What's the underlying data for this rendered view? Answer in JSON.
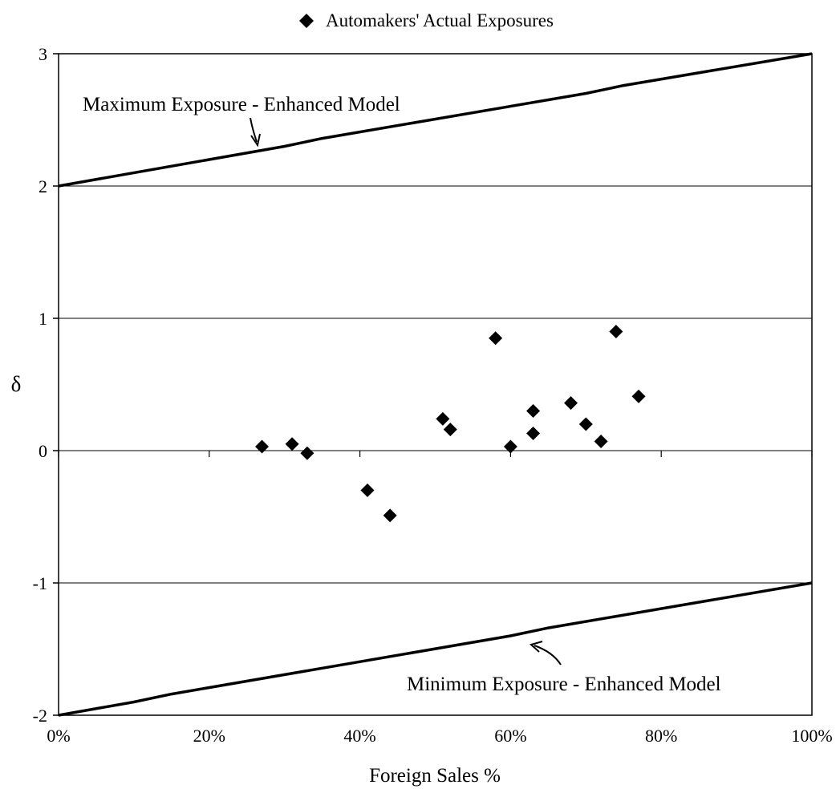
{
  "chart_data": {
    "type": "scatter",
    "title": "",
    "xlabel": "Foreign Sales %",
    "ylabel": "δ",
    "xlim": [
      0,
      100
    ],
    "ylim": [
      -2,
      3
    ],
    "x_ticks": [
      0,
      20,
      40,
      60,
      80,
      100
    ],
    "x_tick_labels": [
      "0%",
      "20%",
      "40%",
      "60%",
      "80%",
      "100%"
    ],
    "y_ticks": [
      -2,
      -1,
      0,
      1,
      2,
      3
    ],
    "y_tick_labels": [
      "-2",
      "-1",
      "0",
      "1",
      "2",
      "3"
    ],
    "grid": "horizontal",
    "legend_position": "top",
    "series": [
      {
        "name": "Automakers' Actual Exposures",
        "type": "scatter",
        "marker": "diamond",
        "color": "#000000",
        "x": [
          27,
          31,
          33,
          41,
          44,
          51,
          52,
          58,
          60,
          63,
          63,
          68,
          70,
          72,
          74,
          77
        ],
        "y": [
          0.03,
          0.05,
          -0.02,
          -0.3,
          -0.49,
          0.24,
          0.16,
          0.85,
          0.03,
          0.3,
          0.13,
          0.36,
          0.2,
          0.07,
          0.9,
          0.41
        ]
      },
      {
        "type": "line",
        "color": "#000000",
        "x": [
          0,
          30,
          35,
          70,
          75,
          100
        ],
        "y": [
          2.0,
          2.3,
          2.36,
          2.7,
          2.76,
          3.0
        ]
      },
      {
        "type": "line",
        "color": "#000000",
        "x": [
          0,
          10,
          15,
          60,
          65,
          100
        ],
        "y": [
          -2.0,
          -1.9,
          -1.84,
          -1.4,
          -1.34,
          -1.0
        ]
      }
    ],
    "annotations": [
      {
        "id": "max",
        "text": "Maximum Exposure - Enhanced Model"
      },
      {
        "id": "min",
        "text": "Minimum Exposure - Enhanced Model"
      }
    ]
  }
}
